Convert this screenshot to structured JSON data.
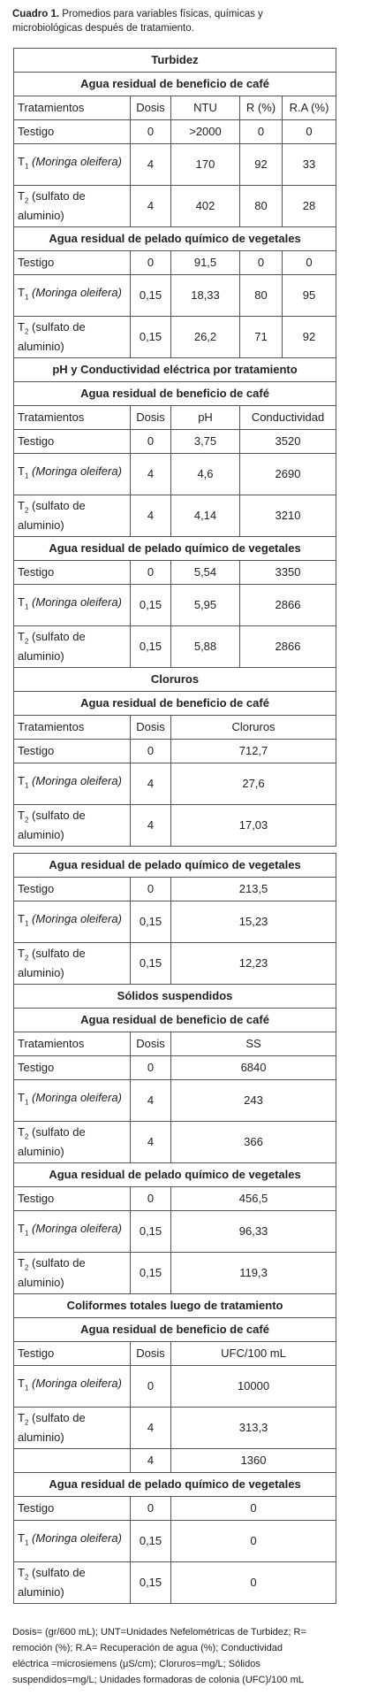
{
  "caption": {
    "label": "Cuadro 1.",
    "text": "Promedios para variables físicas, químicas y microbiológicas después de tratamiento."
  },
  "tables": [
    {
      "rows": [
        [
          "Turbidez"
        ],
        [
          "Agua residual de beneficio de café"
        ],
        [
          "Tratamientos",
          "Dosis",
          "NTU",
          "R (%)",
          "R.A (%)"
        ],
        [
          "Testigo",
          "0",
          ">2000",
          "0",
          "0"
        ],
        [
          {
            "symbol": "T",
            "index": "1",
            "name": "(Moringa oleifera)",
            "italic": true
          },
          "4",
          "170",
          "92",
          "33"
        ],
        [
          {
            "symbol": "T",
            "index": "2",
            "name": "(sulfato de aluminio)",
            "italic": false
          },
          "4",
          "402",
          "80",
          "28"
        ],
        [
          "Agua residual de pelado químico de vegetales"
        ],
        [
          "Testigo",
          "0",
          "91,5",
          "0",
          "0"
        ],
        [
          {
            "symbol": "T",
            "index": "1",
            "name": "(Moringa oleifera)",
            "italic": true
          },
          "0,15",
          "18,33",
          "80",
          "95"
        ],
        [
          {
            "symbol": "T",
            "index": "2",
            "name": "(sulfato de aluminio)",
            "italic": false
          },
          "0,15",
          "26,2",
          "71",
          "92"
        ],
        [
          "pH y Conductividad eléctrica por tratamiento"
        ],
        [
          "Agua residual de beneficio de café"
        ],
        [
          "Tratamientos",
          "Dosis",
          "pH",
          "Conductividad"
        ],
        [
          "Testigo",
          "0",
          "3,75",
          "3520"
        ],
        [
          {
            "symbol": "T",
            "index": "1",
            "name": "(Moringa oleifera)",
            "italic": true
          },
          "4",
          "4,6",
          "2690"
        ],
        [
          {
            "symbol": "T",
            "index": "2",
            "name": "(sulfato de aluminio)",
            "italic": false
          },
          "4",
          "4,14",
          "3210"
        ],
        [
          "Agua residual de pelado químico de vegetales"
        ],
        [
          "Testigo",
          "0",
          "5,54",
          "3350"
        ],
        [
          {
            "symbol": "T",
            "index": "1",
            "name": "(Moringa oleifera)",
            "italic": true
          },
          "0,15",
          "5,95",
          "2866"
        ],
        [
          {
            "symbol": "T",
            "index": "2",
            "name": "(sulfato de aluminio)",
            "italic": false
          },
          "0,15",
          "5,88",
          "2866"
        ],
        [
          "Cloruros"
        ],
        [
          "Agua residual de beneficio de café"
        ],
        [
          "Tratamientos",
          "Dosis",
          "Cloruros"
        ],
        [
          "Testigo",
          "0",
          "712,7"
        ],
        [
          {
            "symbol": "T",
            "index": "1",
            "name": "(Moringa oleifera)",
            "italic": true
          },
          "4",
          "27,6"
        ],
        [
          {
            "symbol": "T",
            "index": "2",
            "name": "(sulfato de aluminio)",
            "italic": false
          },
          "4",
          "17,03"
        ]
      ]
    },
    {
      "rows": [
        [
          "Agua residual de pelado químico de vegetales"
        ],
        [
          "Testigo",
          "0",
          "213,5"
        ],
        [
          {
            "symbol": "T",
            "index": "1",
            "name": "(Moringa oleifera)",
            "italic": true
          },
          "0,15",
          "15,23"
        ],
        [
          {
            "symbol": "T",
            "index": "2",
            "name": "(sulfato de aluminio)",
            "italic": false
          },
          "0,15",
          "12,23"
        ],
        [
          "Sólidos suspendidos"
        ],
        [
          "Agua residual de beneficio de café"
        ],
        [
          "Tratamientos",
          "Dosis",
          "SS"
        ],
        [
          "Testigo",
          "0",
          "6840"
        ],
        [
          {
            "symbol": "T",
            "index": "1",
            "name": "(Moringa oleifera)",
            "italic": true
          },
          "4",
          "243"
        ],
        [
          {
            "symbol": "T",
            "index": "2",
            "name": "(sulfato de aluminio)",
            "italic": false
          },
          "4",
          "366"
        ],
        [
          "Agua residual de pelado químico de vegetales"
        ],
        [
          "Testigo",
          "0",
          "456,5"
        ],
        [
          {
            "symbol": "T",
            "index": "1",
            "name": "(Moringa oleifera)",
            "italic": true
          },
          "0,15",
          "96,33"
        ],
        [
          {
            "symbol": "T",
            "index": "2",
            "name": "(sulfato de aluminio)",
            "italic": false
          },
          "0,15",
          "119,3"
        ],
        [
          "Coliformes totales luego de tratamiento"
        ],
        [
          "Agua residual de beneficio de café"
        ],
        [
          "Testigo",
          "Dosis",
          "UFC/100 mL"
        ],
        [
          {
            "symbol": "T",
            "index": "1",
            "name": "(Moringa oleifera)",
            "italic": true
          },
          "0",
          "10000"
        ],
        [
          {
            "symbol": "T",
            "index": "2",
            "name": "(sulfato de aluminio)",
            "italic": false
          },
          "4",
          "313,3"
        ],
        [
          null,
          "4",
          "1360"
        ],
        [
          "Agua residual de pelado químico de vegetales"
        ],
        [
          "Testigo",
          "0",
          "0"
        ],
        [
          {
            "symbol": "T",
            "index": "1",
            "name": "(Moringa oleifera)",
            "italic": true
          },
          "0,15",
          "0"
        ],
        [
          {
            "symbol": "T",
            "index": "2",
            "name": "(sulfato de aluminio)",
            "italic": false
          },
          "0,15",
          "0"
        ]
      ]
    }
  ],
  "footnote": "Dosis= (gr/600 mL); UNT=Unidades Nefelométricas de Turbidez; R= remoción (%); R.A= Recuperación de agua (%); Conductividad eléctrica =microsiemens (μS/cm); Cloruros=mg/L; Sólidos suspendidos=mg/L; Unidades formadoras de colonia (UFC)/100 mL"
}
